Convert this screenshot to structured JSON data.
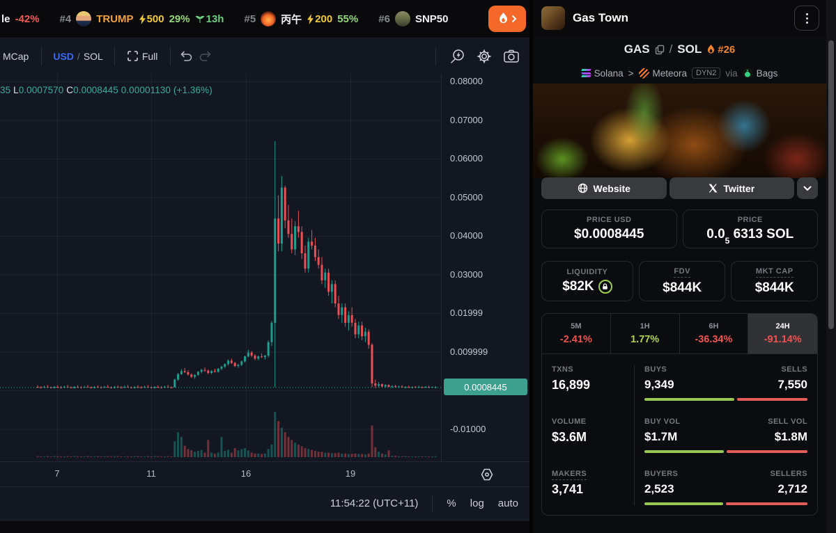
{
  "colors": {
    "up": "#1d9e8e",
    "down": "#ea4f55",
    "vol_up": "rgba(29,158,142,0.45)",
    "vol_down": "rgba(234,79,85,0.45)",
    "grid": "rgba(255,255,255,0.055)",
    "price_line": "#3fa390",
    "badge_bg": "#3da08e",
    "accent_blue": "#3d6af2",
    "negative": "#ef5350",
    "positive": "#b0d64f",
    "bar_green": "#97c853",
    "bar_red": "#e25d5a",
    "orange": "#f0852d",
    "fire_button": "#f4692a"
  },
  "ticker_bar": {
    "partial": {
      "name": "le",
      "change": "-42%"
    },
    "items": [
      {
        "rank": "#4",
        "symbol": "TRUMP",
        "boost": "500",
        "change": "29%",
        "age": "13h"
      },
      {
        "rank": "#5",
        "symbol": "丙午",
        "boost": "200",
        "change": "55%"
      },
      {
        "rank": "#6",
        "symbol": "SNP50"
      }
    ]
  },
  "chart": {
    "toolbar": {
      "mcap": "MCap",
      "usd": "USD",
      "slash": "/",
      "sol": "SOL",
      "full": "Full"
    },
    "ohlc": {
      "h_tail": "35 ",
      "l_label": "L",
      "l": "0.0007570 ",
      "c_label": "C",
      "c": "0.0008445  ",
      "change": "0.00001130 (+1.36%)"
    },
    "bottom": {
      "time": "11:54:22 (UTC+11)",
      "pct": "%",
      "log": "log",
      "auto": "auto"
    }
  },
  "chart_data": {
    "type": "candlestick",
    "pair": "GAS/SOL",
    "price_unit": "USD",
    "ylim": [
      -0.02,
      0.085
    ],
    "grid": {
      "price_lines": [
        0.08,
        0.07,
        0.06,
        0.05,
        0.04,
        0.03,
        0.02,
        0.01,
        0,
        -0.01
      ],
      "time_lines": [
        82,
        217,
        353,
        503
      ]
    },
    "price_ticks": [
      {
        "label": "0.08000",
        "value": 0.08
      },
      {
        "label": "0.07000",
        "value": 0.07
      },
      {
        "label": "0.06000",
        "value": 0.06
      },
      {
        "label": "0.05000",
        "value": 0.05
      },
      {
        "label": "0.04000",
        "value": 0.04
      },
      {
        "label": "0.03000",
        "value": 0.03
      },
      {
        "label": "0.01999",
        "value": 0.02
      },
      {
        "label": "0.009999",
        "value": 0.01
      },
      {
        "label": "-0.01000",
        "value": -0.01
      }
    ],
    "price_line": 0.0008445,
    "price_label": "0.0008445",
    "time_ticks": [
      {
        "label": "7",
        "x": 82
      },
      {
        "label": "11",
        "x": 217
      },
      {
        "label": "16",
        "x": 353
      },
      {
        "label": "19",
        "x": 503
      }
    ],
    "x0": 54,
    "step": 4.8,
    "candles": [
      [
        0.0009,
        0.0013,
        0.0006,
        0.0008,
        2
      ],
      [
        0.0008,
        0.0011,
        0.0005,
        0.0007,
        1
      ],
      [
        0.0007,
        0.0012,
        0.0006,
        0.0009,
        1
      ],
      [
        0.0009,
        0.0014,
        0.0007,
        0.0008,
        2
      ],
      [
        0.0008,
        0.001,
        0.0005,
        0.0006,
        1
      ],
      [
        0.0006,
        0.0011,
        0.0005,
        0.0009,
        2
      ],
      [
        0.0009,
        0.0013,
        0.0006,
        0.0008,
        2
      ],
      [
        0.0008,
        0.0011,
        0.0005,
        0.0007,
        1
      ],
      [
        0.0007,
        0.0012,
        0.0006,
        0.0009,
        1
      ],
      [
        0.0009,
        0.0014,
        0.0007,
        0.0008,
        2
      ],
      [
        0.0008,
        0.001,
        0.0005,
        0.0006,
        1
      ],
      [
        0.0006,
        0.0011,
        0.0005,
        0.0009,
        2
      ],
      [
        0.0009,
        0.0013,
        0.0006,
        0.0008,
        2
      ],
      [
        0.0008,
        0.0011,
        0.0005,
        0.0007,
        1
      ],
      [
        0.0007,
        0.0012,
        0.0006,
        0.0009,
        1
      ],
      [
        0.0009,
        0.0014,
        0.0007,
        0.0008,
        2
      ],
      [
        0.0008,
        0.001,
        0.0005,
        0.0006,
        1
      ],
      [
        0.0006,
        0.0011,
        0.0005,
        0.0009,
        2
      ],
      [
        0.0009,
        0.0013,
        0.0006,
        0.0008,
        2
      ],
      [
        0.0008,
        0.0011,
        0.0005,
        0.0007,
        1
      ],
      [
        0.0007,
        0.0012,
        0.0006,
        0.0009,
        1
      ],
      [
        0.0009,
        0.0014,
        0.0007,
        0.0008,
        2
      ],
      [
        0.0008,
        0.001,
        0.0005,
        0.0006,
        1
      ],
      [
        0.0006,
        0.0011,
        0.0005,
        0.0009,
        2
      ],
      [
        0.0009,
        0.0013,
        0.0006,
        0.0008,
        2
      ],
      [
        0.0008,
        0.0011,
        0.0005,
        0.0007,
        1
      ],
      [
        0.0007,
        0.0012,
        0.0006,
        0.0009,
        1
      ],
      [
        0.0009,
        0.0014,
        0.0007,
        0.0008,
        2
      ],
      [
        0.0008,
        0.001,
        0.0005,
        0.0006,
        1
      ],
      [
        0.0006,
        0.0011,
        0.0005,
        0.0009,
        2
      ],
      [
        0.0009,
        0.0013,
        0.0006,
        0.0008,
        2
      ],
      [
        0.0008,
        0.0011,
        0.0005,
        0.0007,
        1
      ],
      [
        0.0007,
        0.0012,
        0.0006,
        0.0009,
        1
      ],
      [
        0.0009,
        0.0014,
        0.0007,
        0.0008,
        2
      ],
      [
        0.0008,
        0.001,
        0.0005,
        0.0006,
        1
      ],
      [
        0.0006,
        0.0011,
        0.0005,
        0.0009,
        2
      ],
      [
        0.0009,
        0.0013,
        0.0006,
        0.0008,
        2
      ],
      [
        0.0008,
        0.0011,
        0.0005,
        0.0007,
        1
      ],
      [
        0.0007,
        0.0012,
        0.0006,
        0.0009,
        1
      ],
      [
        0.0009,
        0.0014,
        0.0007,
        0.0008,
        2
      ],
      [
        0.0008,
        0.001,
        0.0005,
        0.0006,
        1
      ],
      [
        0.0008,
        0.003,
        0.0007,
        0.0028,
        35
      ],
      [
        0.0028,
        0.0045,
        0.0025,
        0.0042,
        55
      ],
      [
        0.0042,
        0.0055,
        0.004,
        0.005,
        45
      ],
      [
        0.005,
        0.0058,
        0.0045,
        0.0047,
        25
      ],
      [
        0.0047,
        0.0052,
        0.0038,
        0.0041,
        18
      ],
      [
        0.0041,
        0.0044,
        0.0032,
        0.0035,
        15
      ],
      [
        0.0035,
        0.0042,
        0.003,
        0.004,
        12
      ],
      [
        0.004,
        0.005,
        0.0038,
        0.0048,
        14
      ],
      [
        0.0048,
        0.0056,
        0.0044,
        0.0053,
        16
      ],
      [
        0.0053,
        0.006,
        0.0048,
        0.0051,
        10
      ],
      [
        0.0051,
        0.0054,
        0.0042,
        0.0045,
        38
      ],
      [
        0.0045,
        0.0052,
        0.0042,
        0.005,
        10
      ],
      [
        0.005,
        0.0056,
        0.0046,
        0.0048,
        8
      ],
      [
        0.0048,
        0.0058,
        0.0046,
        0.0056,
        10
      ],
      [
        0.0056,
        0.0064,
        0.0052,
        0.0061,
        45
      ],
      [
        0.0061,
        0.007,
        0.0058,
        0.0068,
        14
      ],
      [
        0.0068,
        0.008,
        0.0064,
        0.0077,
        16
      ],
      [
        0.0077,
        0.0082,
        0.0068,
        0.0071,
        10
      ],
      [
        0.0071,
        0.0074,
        0.006,
        0.0063,
        20
      ],
      [
        0.0063,
        0.0069,
        0.0058,
        0.0066,
        15
      ],
      [
        0.0066,
        0.0077,
        0.0063,
        0.0075,
        18
      ],
      [
        0.0075,
        0.009,
        0.0072,
        0.0088,
        20
      ],
      [
        0.0088,
        0.0105,
        0.0085,
        0.0098,
        15
      ],
      [
        0.0098,
        0.0102,
        0.0086,
        0.009,
        10
      ],
      [
        0.009,
        0.0094,
        0.0078,
        0.0082,
        8
      ],
      [
        0.0082,
        0.009,
        0.0078,
        0.0088,
        8
      ],
      [
        0.0088,
        0.0096,
        0.0084,
        0.0086,
        7
      ],
      [
        0.0086,
        0.0092,
        0.008,
        0.009,
        8
      ],
      [
        0.009,
        0.013,
        0.0085,
        0.0125,
        18
      ],
      [
        0.0125,
        0.018,
        0.0115,
        0.0175,
        28
      ],
      [
        0.0175,
        0.0645,
        0.0008,
        0.0445,
        100
      ],
      [
        0.0445,
        0.0505,
        0.036,
        0.038,
        80
      ],
      [
        0.038,
        0.0555,
        0.036,
        0.0525,
        65
      ],
      [
        0.0525,
        0.053,
        0.042,
        0.044,
        55
      ],
      [
        0.044,
        0.048,
        0.0395,
        0.0405,
        45
      ],
      [
        0.0405,
        0.0445,
        0.0355,
        0.0365,
        38
      ],
      [
        0.0365,
        0.0438,
        0.035,
        0.0425,
        32
      ],
      [
        0.0425,
        0.0465,
        0.0395,
        0.041,
        28
      ],
      [
        0.041,
        0.0425,
        0.034,
        0.0355,
        24
      ],
      [
        0.0355,
        0.0375,
        0.0305,
        0.0315,
        20
      ],
      [
        0.0315,
        0.0395,
        0.0305,
        0.0385,
        18
      ],
      [
        0.0385,
        0.0415,
        0.0365,
        0.0375,
        16
      ],
      [
        0.0375,
        0.0395,
        0.0335,
        0.0345,
        14
      ],
      [
        0.0345,
        0.0365,
        0.0315,
        0.0325,
        12
      ],
      [
        0.0325,
        0.0345,
        0.0275,
        0.0285,
        12
      ],
      [
        0.0285,
        0.0315,
        0.0265,
        0.0305,
        10
      ],
      [
        0.0305,
        0.0315,
        0.0245,
        0.0255,
        10
      ],
      [
        0.0255,
        0.0285,
        0.0225,
        0.0275,
        9
      ],
      [
        0.0275,
        0.0285,
        0.0215,
        0.0225,
        9
      ],
      [
        0.0225,
        0.0245,
        0.0185,
        0.0195,
        10
      ],
      [
        0.0195,
        0.0225,
        0.0175,
        0.0215,
        8
      ],
      [
        0.0215,
        0.0225,
        0.0165,
        0.0175,
        8
      ],
      [
        0.0175,
        0.0205,
        0.0155,
        0.0195,
        7
      ],
      [
        0.0195,
        0.0215,
        0.0165,
        0.0175,
        7
      ],
      [
        0.0175,
        0.0185,
        0.0135,
        0.0145,
        8
      ],
      [
        0.0145,
        0.0178,
        0.0135,
        0.0168,
        7
      ],
      [
        0.0168,
        0.0178,
        0.013,
        0.014,
        7
      ],
      [
        0.014,
        0.0162,
        0.0125,
        0.0152,
        6
      ],
      [
        0.0152,
        0.0158,
        0.0108,
        0.0118,
        8
      ],
      [
        0.0118,
        0.0122,
        0.0008,
        0.0018,
        70
      ],
      [
        0.0018,
        0.0028,
        0.0006,
        0.0012,
        22
      ],
      [
        0.0012,
        0.0022,
        0.0007,
        0.0016,
        12
      ],
      [
        0.0016,
        0.0018,
        0.0008,
        0.001,
        8
      ],
      [
        0.001,
        0.0016,
        0.0007,
        0.0014,
        6
      ],
      [
        0.0014,
        0.0015,
        0.0008,
        0.0009,
        15
      ],
      [
        0.0009,
        0.0013,
        0.0006,
        0.0011,
        3
      ],
      [
        0.0011,
        0.0014,
        0.0007,
        0.0009,
        3
      ],
      [
        0.0009,
        0.0012,
        0.0006,
        0.001,
        2
      ],
      [
        0.001,
        0.0013,
        0.0007,
        0.0008,
        2
      ],
      [
        0.0008,
        0.0011,
        0.0005,
        0.0009,
        2
      ],
      [
        0.0009,
        0.0012,
        0.0006,
        0.0008,
        1
      ],
      [
        0.0008,
        0.001,
        0.0005,
        0.0009,
        1
      ],
      [
        0.0009,
        0.0011,
        0.0006,
        0.0008,
        1
      ],
      [
        0.0008,
        0.0012,
        0.0006,
        0.0009,
        1
      ],
      [
        0.0009,
        0.001,
        0.0005,
        0.0008,
        1
      ],
      [
        0.0008,
        0.0011,
        0.0006,
        0.0009,
        1
      ],
      [
        0.0009,
        0.0012,
        0.0006,
        0.0008,
        1
      ],
      [
        0.0008,
        0.001,
        0.0006,
        0.0009,
        1
      ],
      [
        0.0008,
        0.0011,
        0.0005,
        0.00084,
        2
      ]
    ]
  },
  "panel": {
    "header": {
      "title": "Gas Town"
    },
    "pair": {
      "base": "GAS",
      "sep": "/",
      "quote": "SOL",
      "rank": "#26"
    },
    "chain": {
      "network": "Solana",
      "sep": ">",
      "dex": "Meteora",
      "badge": "DYN2",
      "via": "via",
      "launchpad": "Bags"
    },
    "links": {
      "website": "Website",
      "twitter": "Twitter"
    },
    "price_usd": {
      "label": "PRICE USD",
      "value": "$0.0008445"
    },
    "price_sol": {
      "label": "PRICE",
      "prefix": "0.0",
      "sub": "5",
      "rest": "6313 SOL"
    },
    "liquidity": {
      "label": "LIQUIDITY",
      "value": "$82K"
    },
    "fdv": {
      "label": "FDV",
      "value": "$844K"
    },
    "mkt_cap": {
      "label": "MKT CAP",
      "value": "$844K"
    },
    "timeframes": [
      {
        "label": "5M",
        "value": "-2.41%"
      },
      {
        "label": "1H",
        "value": "1.77%"
      },
      {
        "label": "6H",
        "value": "-36.34%"
      },
      {
        "label": "24H",
        "value": "-91.14%"
      }
    ],
    "txns": {
      "label": "TXNS",
      "value": "16,899"
    },
    "buys": {
      "label": "BUYS",
      "value": "9,349"
    },
    "sells": {
      "label": "SELLS",
      "value": "7,550"
    },
    "buys_pct": 55.3,
    "volume": {
      "label": "VOLUME",
      "value": "$3.6M"
    },
    "buy_vol": {
      "label": "BUY VOL",
      "value": "$1.7M"
    },
    "sell_vol": {
      "label": "SELL VOL",
      "value": "$1.8M"
    },
    "buy_vol_pct": 48.6,
    "makers": {
      "label": "MAKERS",
      "value": "3,741"
    },
    "buyers": {
      "label": "BUYERS",
      "value": "2,523"
    },
    "sellers": {
      "label": "SELLERS",
      "value": "2,712"
    },
    "buyers_pct": 48.2
  }
}
